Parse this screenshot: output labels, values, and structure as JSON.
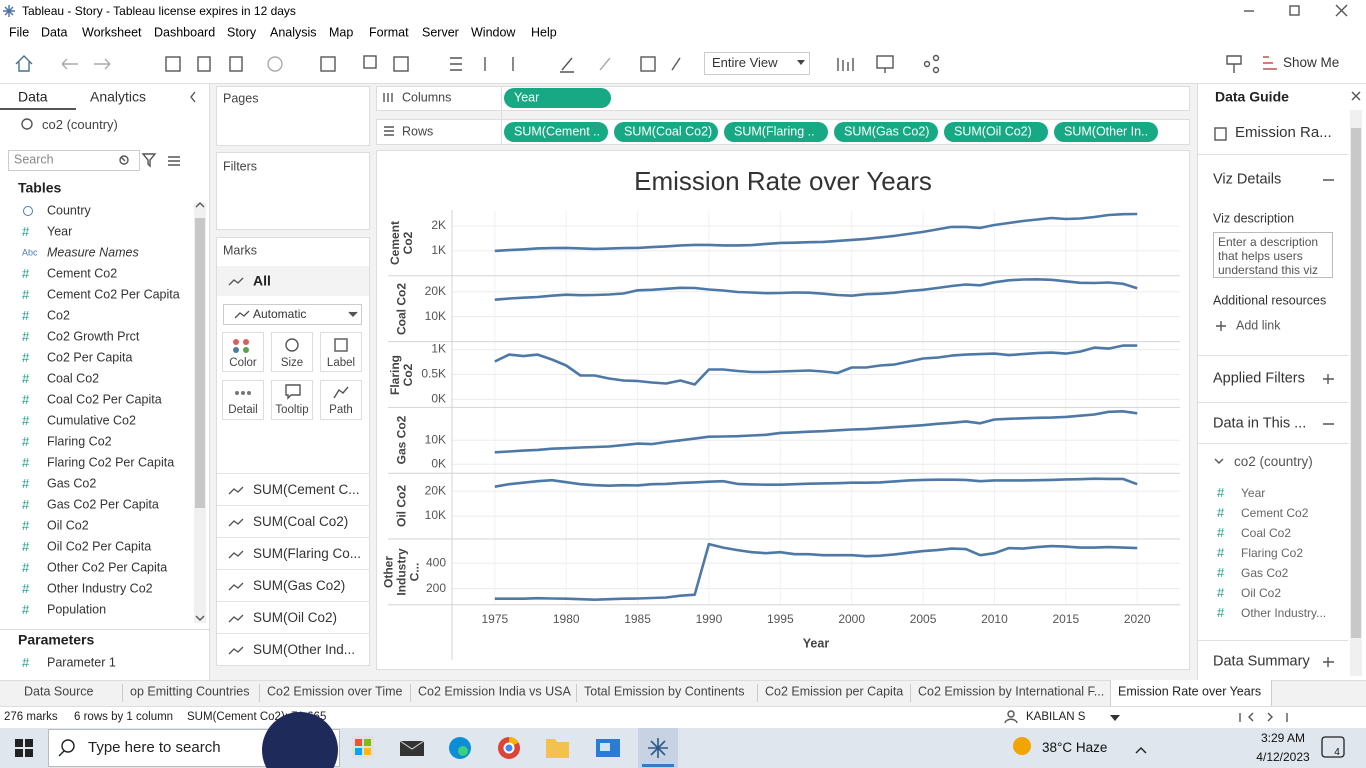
{
  "window": {
    "title": "Tableau - Story - Tableau license expires in 12 days"
  },
  "menu": [
    "File",
    "Data",
    "Worksheet",
    "Dashboard",
    "Story",
    "Analysis",
    "Map",
    "Format",
    "Server",
    "Window",
    "Help"
  ],
  "toolbar": {
    "fit": "Entire View",
    "show_me": "Show Me"
  },
  "data_pane": {
    "tabs": [
      "Data",
      "Analytics"
    ],
    "source": "co2 (country)",
    "search": "Search",
    "tables_heading": "Tables",
    "fields": [
      {
        "kind": "geo",
        "name": "Country"
      },
      {
        "kind": "#",
        "name": "Year"
      },
      {
        "kind": "Abc",
        "name": "Measure Names"
      },
      {
        "kind": "#",
        "name": "Cement Co2"
      },
      {
        "kind": "#",
        "name": "Cement Co2 Per Capita"
      },
      {
        "kind": "#",
        "name": "Co2"
      },
      {
        "kind": "#",
        "name": "Co2 Growth Prct"
      },
      {
        "kind": "#",
        "name": "Co2 Per Capita"
      },
      {
        "kind": "#",
        "name": "Coal Co2"
      },
      {
        "kind": "#",
        "name": "Coal Co2 Per Capita"
      },
      {
        "kind": "#",
        "name": "Cumulative Co2"
      },
      {
        "kind": "#",
        "name": "Flaring Co2"
      },
      {
        "kind": "#",
        "name": "Flaring Co2 Per Capita"
      },
      {
        "kind": "#",
        "name": "Gas Co2"
      },
      {
        "kind": "#",
        "name": "Gas Co2 Per Capita"
      },
      {
        "kind": "#",
        "name": "Oil Co2"
      },
      {
        "kind": "#",
        "name": "Oil Co2 Per Capita"
      },
      {
        "kind": "#",
        "name": "Other Co2 Per Capita"
      },
      {
        "kind": "#",
        "name": "Other Industry Co2"
      },
      {
        "kind": "#",
        "name": "Population"
      }
    ],
    "parameters_heading": "Parameters",
    "parameters": [
      {
        "kind": "#",
        "name": "Parameter 1"
      }
    ]
  },
  "cards": {
    "pages": "Pages",
    "filters": "Filters",
    "marks": {
      "heading": "Marks",
      "all": "All",
      "mark_type": "Automatic",
      "buttons": [
        "Color",
        "Size",
        "Label",
        "Detail",
        "Tooltip",
        "Path"
      ],
      "items": [
        "SUM(Cement C...",
        "SUM(Coal Co2)",
        "SUM(Flaring Co...",
        "SUM(Gas Co2)",
        "SUM(Oil Co2)",
        "SUM(Other Ind..."
      ]
    }
  },
  "shelves": {
    "columns": {
      "label": "Columns",
      "pills": [
        "Year"
      ]
    },
    "rows": {
      "label": "Rows",
      "pills": [
        "SUM(Cement ..",
        "SUM(Coal Co2)",
        "SUM(Flaring ..",
        "SUM(Gas Co2)",
        "SUM(Oil Co2)",
        "SUM(Other In.."
      ]
    }
  },
  "chart_data": {
    "type": "line",
    "title": "Emission Rate over Years",
    "x_label": "Year",
    "color": "#4e79a7",
    "grid": true,
    "x": [
      1975,
      1976,
      1977,
      1978,
      1979,
      1980,
      1981,
      1982,
      1983,
      1984,
      1985,
      1986,
      1987,
      1988,
      1989,
      1990,
      1991,
      1992,
      1993,
      1994,
      1995,
      1996,
      1997,
      1998,
      1999,
      2000,
      2001,
      2002,
      2003,
      2004,
      2005,
      2006,
      2007,
      2008,
      2009,
      2010,
      2011,
      2012,
      2013,
      2014,
      2015,
      2016,
      2017,
      2018,
      2019,
      2020
    ],
    "xlim": [
      1972,
      2023
    ],
    "xticks": [
      1975,
      1980,
      1985,
      1990,
      1995,
      2000,
      2005,
      2010,
      2015,
      2020
    ],
    "series": [
      {
        "name": "Cement Co2",
        "ylim": [
          0,
          2640
        ],
        "yticks": [
          {
            "value": 1000,
            "label": "1K"
          },
          {
            "value": 2000,
            "label": "2K"
          }
        ],
        "values": [
          1000,
          1030,
          1060,
          1100,
          1110,
          1120,
          1100,
          1080,
          1090,
          1110,
          1120,
          1150,
          1180,
          1220,
          1240,
          1240,
          1220,
          1220,
          1230,
          1280,
          1320,
          1330,
          1350,
          1360,
          1400,
          1440,
          1480,
          1540,
          1600,
          1680,
          1760,
          1860,
          1960,
          1960,
          1920,
          2040,
          2120,
          2200,
          2260,
          2320,
          2280,
          2300,
          2360,
          2440,
          2470,
          2480
        ]
      },
      {
        "name": "Coal Co2",
        "ylim": [
          0,
          26400
        ],
        "yticks": [
          {
            "value": 10000,
            "label": "10K"
          },
          {
            "value": 20000,
            "label": "20K"
          }
        ],
        "values": [
          16800,
          17300,
          17600,
          17900,
          18400,
          18800,
          18600,
          18700,
          18900,
          19300,
          20600,
          20800,
          21200,
          21600,
          21500,
          20900,
          20500,
          19900,
          19700,
          19400,
          19500,
          19700,
          19600,
          19200,
          18700,
          18400,
          19000,
          19200,
          19600,
          20300,
          20800,
          21500,
          22300,
          22900,
          22600,
          23800,
          24600,
          24900,
          25000,
          24800,
          24200,
          23600,
          23500,
          23700,
          23200,
          21400
        ]
      },
      {
        "name": "Flaring Co2",
        "ylim": [
          -160,
          1160
        ],
        "yticks": [
          {
            "value": 0,
            "label": "0K"
          },
          {
            "value": 500,
            "label": "0.5K"
          },
          {
            "value": 1000,
            "label": "1K"
          }
        ],
        "values": [
          760,
          900,
          870,
          900,
          800,
          680,
          480,
          480,
          420,
          380,
          370,
          340,
          320,
          380,
          300,
          600,
          600,
          570,
          550,
          550,
          560,
          570,
          580,
          560,
          530,
          640,
          640,
          680,
          700,
          760,
          820,
          840,
          880,
          900,
          910,
          920,
          890,
          910,
          930,
          940,
          920,
          960,
          1040,
          1020,
          1080,
          1080
        ]
      },
      {
        "name": "Gas Co2",
        "ylim": [
          -3750,
          23750
        ],
        "yticks": [
          {
            "value": 0,
            "label": "0K"
          },
          {
            "value": 10000,
            "label": "10K"
          }
        ],
        "values": [
          5000,
          5300,
          5700,
          6000,
          6500,
          6700,
          7000,
          7200,
          7400,
          8000,
          8600,
          8400,
          9300,
          10000,
          10700,
          11500,
          11600,
          11700,
          12000,
          12300,
          13100,
          13300,
          13600,
          13800,
          14200,
          14500,
          14700,
          15100,
          15500,
          15900,
          16300,
          16900,
          17300,
          17900,
          17100,
          18700,
          19000,
          19200,
          19400,
          19500,
          19800,
          20300,
          20800,
          21900,
          22100,
          21300
        ]
      },
      {
        "name": "Oil Co2",
        "ylim": [
          800,
          27200
        ],
        "yticks": [
          {
            "value": 10000,
            "label": "10K"
          },
          {
            "value": 20000,
            "label": "20K"
          }
        ],
        "values": [
          21800,
          22800,
          23400,
          24000,
          24400,
          23600,
          22800,
          22400,
          22200,
          22400,
          22300,
          22800,
          22900,
          23300,
          23500,
          23800,
          24000,
          22900,
          22700,
          22600,
          22600,
          22800,
          23000,
          23100,
          23200,
          23400,
          23400,
          23500,
          23900,
          24300,
          24500,
          24600,
          24600,
          24500,
          24000,
          24300,
          24300,
          24300,
          24400,
          24500,
          24700,
          24800,
          25000,
          24900,
          24900,
          22800
        ]
      },
      {
        "name": "Other Industry C...",
        "ylim": [
          72,
          592
        ],
        "yticks": [
          200,
          400
        ],
        "values": [
          120,
          120,
          120,
          124,
          122,
          120,
          116,
          112,
          116,
          120,
          122,
          126,
          130,
          144,
          152,
          552,
          524,
          504,
          488,
          480,
          488,
          472,
          472,
          464,
          464,
          464,
          456,
          460,
          470,
          484,
          496,
          504,
          516,
          512,
          464,
          480,
          520,
          516,
          528,
          536,
          532,
          524,
          524,
          528,
          524,
          520
        ]
      }
    ]
  },
  "data_guide": {
    "heading": "Data Guide",
    "sheet": "Emission Ra...",
    "viz_details": "Viz Details",
    "viz_description": "Viz description",
    "description_placeholder": "Enter a description that helps users understand this viz",
    "resources": "Additional resources",
    "add_link": "Add link",
    "applied_filters": "Applied Filters",
    "data_in_this": "Data in This ...",
    "source": "co2 (country)",
    "fields": [
      {
        "kind": "#",
        "name": "Year"
      },
      {
        "kind": "#",
        "name": "Cement Co2"
      },
      {
        "kind": "#",
        "name": "Coal Co2"
      },
      {
        "kind": "#",
        "name": "Flaring Co2"
      },
      {
        "kind": "#",
        "name": "Gas Co2"
      },
      {
        "kind": "#",
        "name": "Oil Co2"
      },
      {
        "kind": "#",
        "name": "Other Industry..."
      }
    ],
    "data_summary": "Data Summary"
  },
  "sheet_tabs": {
    "items": [
      "Data Source",
      "op Emitting Countries",
      "Co2 Emission over Time",
      "Co2 Emission India vs USA",
      "Total Emission by Continents",
      "Co2 Emission per Capita",
      "Co2 Emission by International F...",
      "Emission Rate over Years"
    ],
    "active": 7
  },
  "status": {
    "marks": "276 marks",
    "shape": "6 rows by 1 column",
    "sum": "SUM(Cement Co2): 71,665",
    "user": "KABILAN S"
  },
  "taskbar": {
    "search": "Type here to search",
    "weather": "38°C Haze",
    "time": "3:29 AM",
    "date": "4/12/2023",
    "notifications": "4"
  }
}
